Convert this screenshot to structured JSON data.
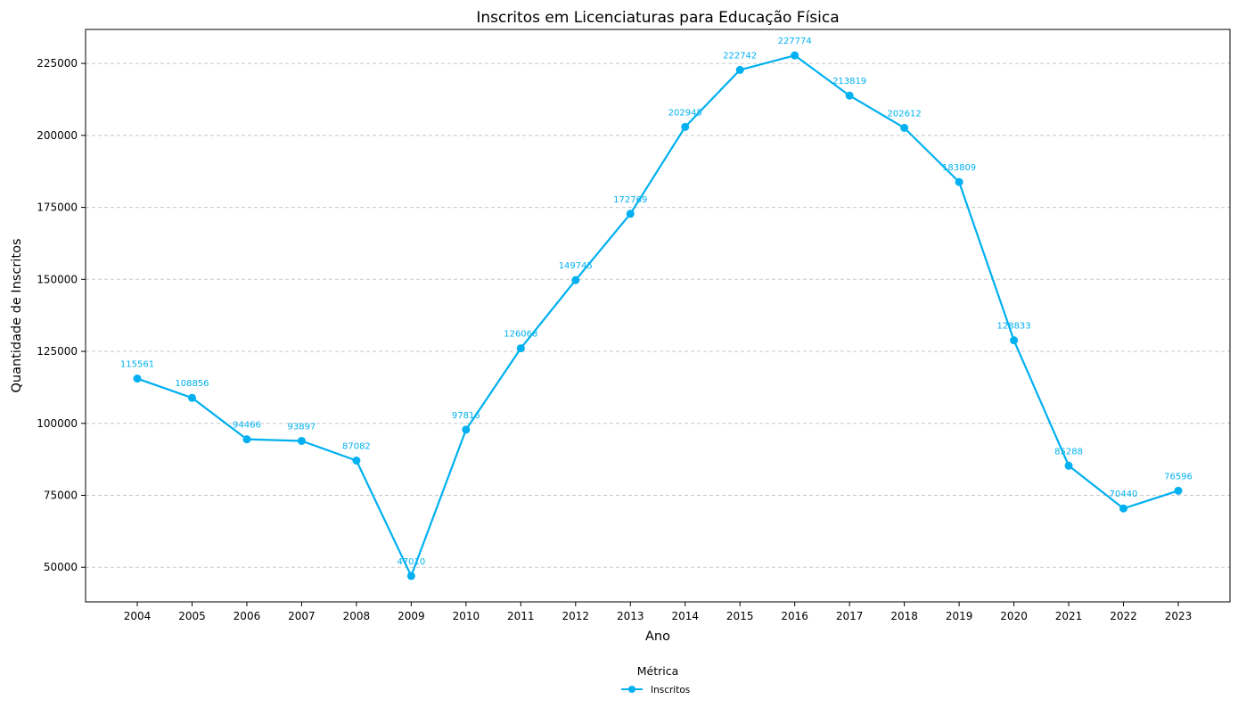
{
  "chart_data": {
    "type": "line",
    "title": "Inscritos em Licenciaturas para Educação Física",
    "xlabel": "Ano",
    "ylabel": "Quantidade de Inscritos",
    "x": [
      "2004",
      "2005",
      "2006",
      "2007",
      "2008",
      "2009",
      "2010",
      "2011",
      "2012",
      "2013",
      "2014",
      "2015",
      "2016",
      "2017",
      "2018",
      "2019",
      "2020",
      "2021",
      "2022",
      "2023"
    ],
    "series": [
      {
        "name": "Inscritos",
        "color": "#00b0f0",
        "values": [
          115561,
          108856,
          94466,
          93897,
          87082,
          47010,
          97816,
          126068,
          149745,
          172769,
          202945,
          222742,
          227774,
          213819,
          202612,
          183809,
          128833,
          85288,
          70440,
          76596
        ]
      }
    ],
    "y_ticks": [
      "50000",
      "75000",
      "100000",
      "125000",
      "150000",
      "175000",
      "200000",
      "225000"
    ],
    "ylim": [
      38000,
      236800
    ],
    "grid": "horizontal dashed",
    "legend": {
      "title": "Métrica",
      "placement": "bottom-center"
    }
  }
}
